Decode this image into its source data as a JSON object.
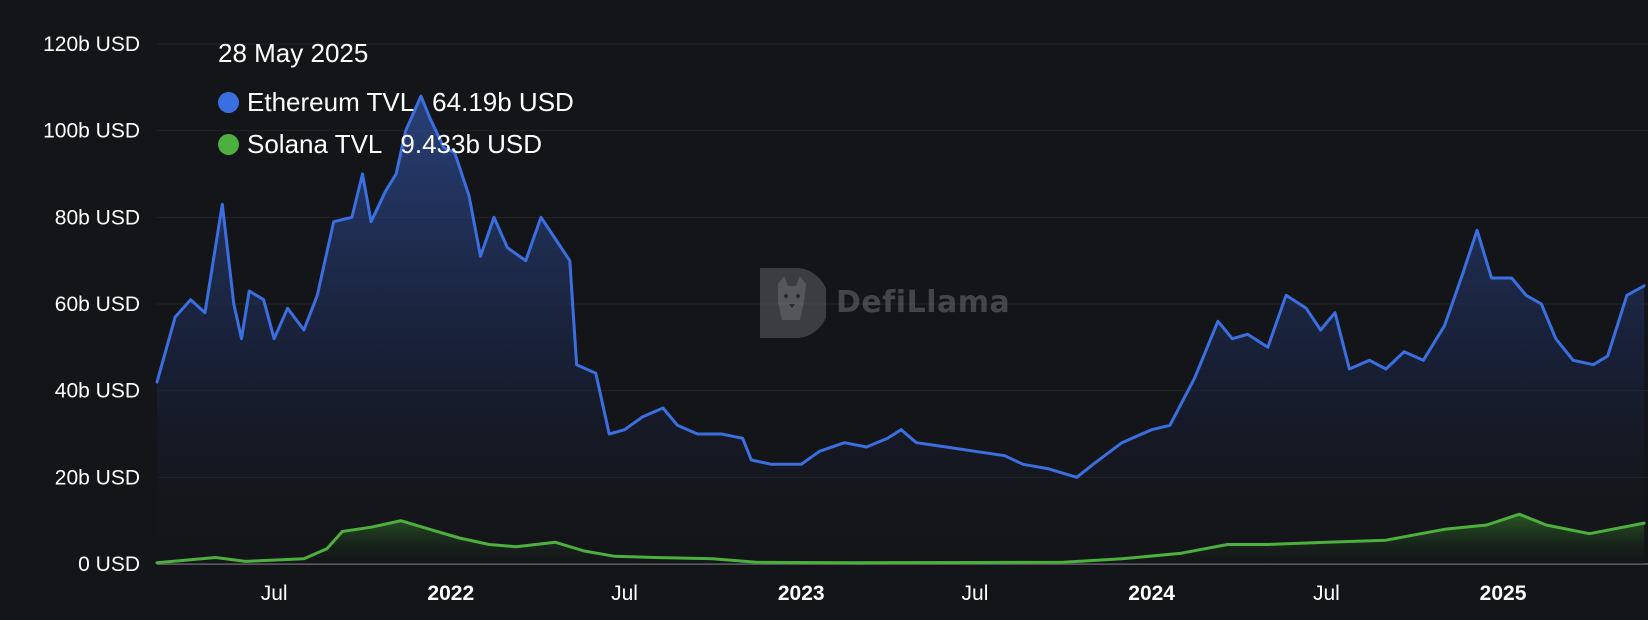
{
  "tooltip": {
    "date": "28 May 2025",
    "items": [
      {
        "label": "Ethereum TVL",
        "value": "64.19b USD",
        "color": "#3b6fe0"
      },
      {
        "label": "Solana TVL",
        "value": "9.433b USD",
        "color": "#4caf3e"
      }
    ]
  },
  "watermark": {
    "brand": "DefiLlama"
  },
  "chart_data": {
    "type": "area",
    "title": "",
    "xlabel": "",
    "ylabel": "",
    "y_ticks": [
      "0 USD",
      "20b USD",
      "40b USD",
      "60b USD",
      "80b USD",
      "100b USD",
      "120b USD"
    ],
    "x_ticks": [
      {
        "label": "Jul",
        "date": "2021-07-01",
        "bold": false
      },
      {
        "label": "2022",
        "date": "2022-01-01",
        "bold": true
      },
      {
        "label": "Jul",
        "date": "2022-07-01",
        "bold": false
      },
      {
        "label": "2023",
        "date": "2023-01-01",
        "bold": true
      },
      {
        "label": "Jul",
        "date": "2023-07-01",
        "bold": false
      },
      {
        "label": "2024",
        "date": "2024-01-01",
        "bold": true
      },
      {
        "label": "Jul",
        "date": "2024-07-01",
        "bold": false
      },
      {
        "label": "2025",
        "date": "2025-01-01",
        "bold": true
      }
    ],
    "ylim": [
      0,
      120
    ],
    "xlim": [
      "2021-03-01",
      "2025-06-01"
    ],
    "grid": true,
    "series": [
      {
        "name": "Ethereum TVL",
        "color": "#3b6fe0",
        "points": [
          [
            "2021-03-01",
            42
          ],
          [
            "2021-03-20",
            57
          ],
          [
            "2021-04-05",
            61
          ],
          [
            "2021-04-20",
            58
          ],
          [
            "2021-05-08",
            83
          ],
          [
            "2021-05-20",
            60
          ],
          [
            "2021-05-28",
            52
          ],
          [
            "2021-06-05",
            63
          ],
          [
            "2021-06-20",
            61
          ],
          [
            "2021-07-01",
            52
          ],
          [
            "2021-07-15",
            59
          ],
          [
            "2021-08-01",
            54
          ],
          [
            "2021-08-15",
            62
          ],
          [
            "2021-09-01",
            79
          ],
          [
            "2021-09-20",
            80
          ],
          [
            "2021-10-01",
            90
          ],
          [
            "2021-10-10",
            79
          ],
          [
            "2021-10-25",
            86
          ],
          [
            "2021-11-05",
            90
          ],
          [
            "2021-11-15",
            100
          ],
          [
            "2021-12-01",
            108
          ],
          [
            "2021-12-10",
            103
          ],
          [
            "2021-12-25",
            96
          ],
          [
            "2022-01-05",
            95
          ],
          [
            "2022-01-20",
            85
          ],
          [
            "2022-02-01",
            71
          ],
          [
            "2022-02-15",
            80
          ],
          [
            "2022-03-01",
            73
          ],
          [
            "2022-03-20",
            70
          ],
          [
            "2022-04-05",
            80
          ],
          [
            "2022-04-20",
            75
          ],
          [
            "2022-05-05",
            70
          ],
          [
            "2022-05-12",
            46
          ],
          [
            "2022-06-01",
            44
          ],
          [
            "2022-06-15",
            30
          ],
          [
            "2022-07-01",
            31
          ],
          [
            "2022-07-20",
            34
          ],
          [
            "2022-08-10",
            36
          ],
          [
            "2022-08-25",
            32
          ],
          [
            "2022-09-15",
            30
          ],
          [
            "2022-10-10",
            30
          ],
          [
            "2022-11-01",
            29
          ],
          [
            "2022-11-10",
            24
          ],
          [
            "2022-12-01",
            23
          ],
          [
            "2023-01-01",
            23
          ],
          [
            "2023-01-20",
            26
          ],
          [
            "2023-02-15",
            28
          ],
          [
            "2023-03-10",
            27
          ],
          [
            "2023-04-01",
            29
          ],
          [
            "2023-04-15",
            31
          ],
          [
            "2023-05-01",
            28
          ],
          [
            "2023-06-01",
            27
          ],
          [
            "2023-07-01",
            26
          ],
          [
            "2023-08-01",
            25
          ],
          [
            "2023-08-20",
            23
          ],
          [
            "2023-09-15",
            22
          ],
          [
            "2023-10-15",
            20
          ],
          [
            "2023-11-01",
            23
          ],
          [
            "2023-12-01",
            28
          ],
          [
            "2024-01-01",
            31
          ],
          [
            "2024-01-20",
            32
          ],
          [
            "2024-02-15",
            43
          ],
          [
            "2024-03-10",
            56
          ],
          [
            "2024-03-25",
            52
          ],
          [
            "2024-04-10",
            53
          ],
          [
            "2024-05-01",
            50
          ],
          [
            "2024-05-20",
            62
          ],
          [
            "2024-06-10",
            59
          ],
          [
            "2024-06-25",
            54
          ],
          [
            "2024-07-10",
            58
          ],
          [
            "2024-07-25",
            45
          ],
          [
            "2024-08-15",
            47
          ],
          [
            "2024-09-01",
            45
          ],
          [
            "2024-09-20",
            49
          ],
          [
            "2024-10-10",
            47
          ],
          [
            "2024-11-01",
            55
          ],
          [
            "2024-11-20",
            67
          ],
          [
            "2024-12-05",
            77
          ],
          [
            "2024-12-20",
            66
          ],
          [
            "2025-01-10",
            66
          ],
          [
            "2025-01-25",
            62
          ],
          [
            "2025-02-10",
            60
          ],
          [
            "2025-02-25",
            52
          ],
          [
            "2025-03-15",
            47
          ],
          [
            "2025-04-05",
            46
          ],
          [
            "2025-04-20",
            48
          ],
          [
            "2025-05-10",
            62
          ],
          [
            "2025-05-28",
            64.19
          ]
        ]
      },
      {
        "name": "Solana TVL",
        "color": "#4caf3e",
        "points": [
          [
            "2021-03-01",
            0.3
          ],
          [
            "2021-05-01",
            1.5
          ],
          [
            "2021-06-01",
            0.6
          ],
          [
            "2021-08-01",
            1.2
          ],
          [
            "2021-08-25",
            3.5
          ],
          [
            "2021-09-10",
            7.5
          ],
          [
            "2021-10-10",
            8.5
          ],
          [
            "2021-11-10",
            10
          ],
          [
            "2021-12-10",
            8
          ],
          [
            "2022-01-10",
            6
          ],
          [
            "2022-02-10",
            4.5
          ],
          [
            "2022-03-10",
            4
          ],
          [
            "2022-04-20",
            5
          ],
          [
            "2022-05-20",
            3
          ],
          [
            "2022-06-20",
            1.8
          ],
          [
            "2022-08-01",
            1.5
          ],
          [
            "2022-10-01",
            1.2
          ],
          [
            "2022-11-15",
            0.4
          ],
          [
            "2023-03-01",
            0.3
          ],
          [
            "2023-07-01",
            0.35
          ],
          [
            "2023-10-01",
            0.4
          ],
          [
            "2023-12-01",
            1.2
          ],
          [
            "2024-02-01",
            2.5
          ],
          [
            "2024-03-20",
            4.5
          ],
          [
            "2024-05-01",
            4.5
          ],
          [
            "2024-07-01",
            5
          ],
          [
            "2024-09-01",
            5.5
          ],
          [
            "2024-11-01",
            8
          ],
          [
            "2024-12-15",
            9
          ],
          [
            "2025-01-18",
            11.5
          ],
          [
            "2025-02-15",
            9
          ],
          [
            "2025-04-01",
            7
          ],
          [
            "2025-05-28",
            9.433
          ]
        ]
      }
    ]
  }
}
